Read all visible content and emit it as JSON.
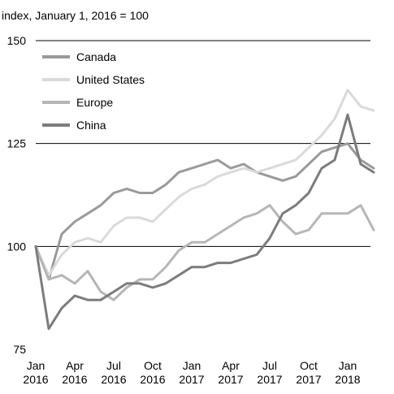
{
  "chart_data": {
    "type": "line",
    "title": "",
    "ylabel": "index, January 1, 2016 = 100",
    "xlabel": "",
    "ylim": [
      75,
      150
    ],
    "yticks": [
      "150",
      "125",
      "100",
      "75"
    ],
    "xticks": [
      [
        "Jan",
        "2016"
      ],
      [
        "Apr",
        "2016"
      ],
      [
        "Jul",
        "2016"
      ],
      [
        "Oct",
        "2016"
      ],
      [
        "Jan",
        "2017"
      ],
      [
        "Apr",
        "2017"
      ],
      [
        "Jul",
        "2017"
      ],
      [
        "Oct",
        "2017"
      ],
      [
        "Jan",
        "2018"
      ]
    ],
    "grid": "horizontal",
    "legend_position": "top-left",
    "x": [
      "2016-01",
      "2016-02",
      "2016-03",
      "2016-04",
      "2016-05",
      "2016-06",
      "2016-07",
      "2016-08",
      "2016-09",
      "2016-10",
      "2016-11",
      "2016-12",
      "2017-01",
      "2017-02",
      "2017-03",
      "2017-04",
      "2017-05",
      "2017-06",
      "2017-07",
      "2017-08",
      "2017-09",
      "2017-10",
      "2017-11",
      "2017-12",
      "2018-01",
      "2018-02",
      "2018-03"
    ],
    "series": [
      {
        "name": "Canada",
        "color": "#9a9a9a",
        "values": [
          100,
          92,
          103,
          106,
          108,
          110,
          113,
          114,
          113,
          113,
          115,
          118,
          119,
          120,
          121,
          119,
          120,
          118,
          117,
          116,
          117,
          120,
          123,
          124,
          125,
          121,
          119
        ]
      },
      {
        "name": "United States",
        "color": "#dadada",
        "values": [
          100,
          93,
          98,
          101,
          102,
          101,
          105,
          107,
          107,
          106,
          109,
          112,
          114,
          115,
          117,
          118,
          119,
          118,
          119,
          120,
          121,
          124,
          127,
          131,
          138,
          134,
          133
        ]
      },
      {
        "name": "Europe",
        "color": "#b6b6b6",
        "values": [
          100,
          92,
          93,
          91,
          94,
          89,
          87,
          90,
          92,
          92,
          95,
          99,
          101,
          101,
          103,
          105,
          107,
          108,
          110,
          106,
          103,
          104,
          108,
          108,
          108,
          110,
          104
        ]
      },
      {
        "name": "China",
        "color": "#7c7c7c",
        "values": [
          100,
          80,
          85,
          88,
          87,
          87,
          89,
          91,
          91,
          90,
          91,
          93,
          95,
          95,
          96,
          96,
          97,
          98,
          102,
          108,
          110,
          113,
          119,
          121,
          132,
          120,
          118
        ]
      }
    ]
  }
}
